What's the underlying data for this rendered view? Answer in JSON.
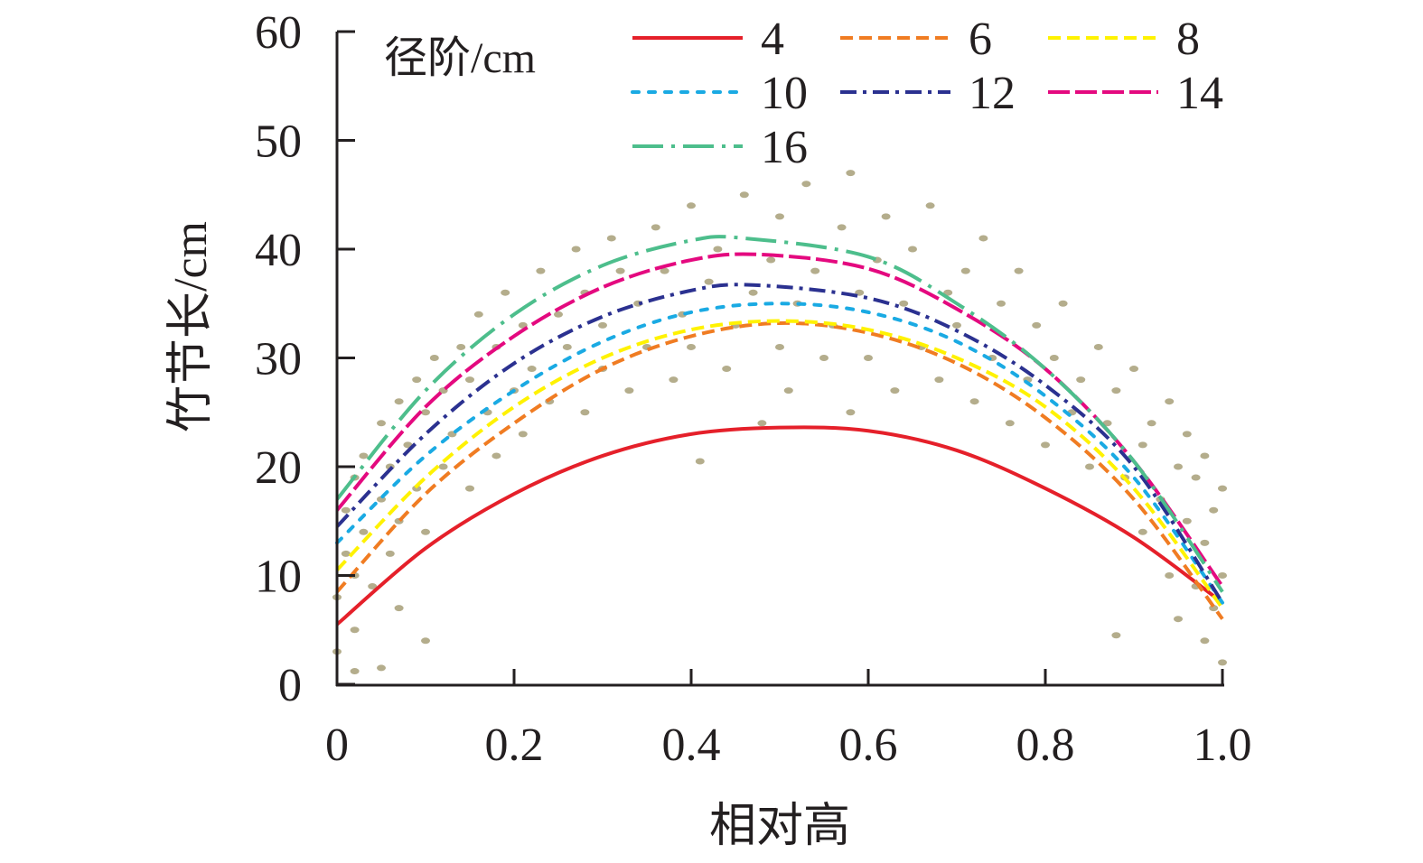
{
  "chart_data": {
    "type": "line",
    "xlabel": "相对高",
    "ylabel": "竹节长/cm",
    "xlim": [
      0,
      1.0
    ],
    "ylim": [
      0,
      60
    ],
    "xticks": [
      "0",
      "0.2",
      "0.4",
      "0.6",
      "0.8",
      "1.0"
    ],
    "xtick_values": [
      0,
      0.2,
      0.4,
      0.6,
      0.8,
      1.0
    ],
    "yticks": [
      "0",
      "10",
      "20",
      "30",
      "40",
      "50",
      "60"
    ],
    "ytick_values": [
      0,
      10,
      20,
      30,
      40,
      50,
      60
    ],
    "grid": false,
    "legend": {
      "title": "径阶/cm",
      "placement": "top"
    },
    "series": [
      {
        "name": "4",
        "color": "#e5202a",
        "style": "solid",
        "x": [
          0,
          0.1,
          0.2,
          0.3,
          0.4,
          0.5,
          0.6,
          0.7,
          0.8,
          0.9,
          1.0
        ],
        "y": [
          5.5,
          12.5,
          17.5,
          21,
          23,
          23.6,
          23.3,
          21.5,
          18,
          13.5,
          7.5
        ]
      },
      {
        "name": "6",
        "color": "#f07c22",
        "style": "dashed",
        "x": [
          0,
          0.1,
          0.2,
          0.3,
          0.4,
          0.5,
          0.6,
          0.7,
          0.8,
          0.9,
          1.0
        ],
        "y": [
          8.5,
          17.5,
          24,
          29,
          32,
          33.2,
          32.3,
          29.5,
          24.5,
          17,
          6
        ]
      },
      {
        "name": "8",
        "color": "#fff200",
        "style": "dashed",
        "x": [
          0,
          0.1,
          0.2,
          0.3,
          0.4,
          0.5,
          0.6,
          0.7,
          0.8,
          0.9,
          1.0
        ],
        "y": [
          10.5,
          19,
          25.5,
          30,
          32.6,
          33.4,
          32.6,
          30,
          25.5,
          18,
          7
        ]
      },
      {
        "name": "10",
        "color": "#1aaae3",
        "style": "dotted",
        "x": [
          0,
          0.1,
          0.2,
          0.3,
          0.4,
          0.5,
          0.6,
          0.7,
          0.8,
          0.9,
          1.0
        ],
        "y": [
          13,
          21,
          27,
          31.5,
          34.2,
          35,
          34.2,
          31.5,
          26.5,
          19,
          7.5
        ]
      },
      {
        "name": "12",
        "color": "#2b3190",
        "style": "dash-dot",
        "x": [
          0,
          0.1,
          0.2,
          0.3,
          0.4,
          0.47,
          0.6,
          0.7,
          0.8,
          0.9,
          1.0
        ],
        "y": [
          14.5,
          23,
          29.5,
          33.8,
          36.2,
          36.7,
          35.5,
          32.5,
          27.5,
          20,
          7.5
        ]
      },
      {
        "name": "14",
        "color": "#e4097f",
        "style": "long-dash",
        "x": [
          0,
          0.1,
          0.2,
          0.3,
          0.4,
          0.48,
          0.6,
          0.7,
          0.8,
          0.9,
          1.0
        ],
        "y": [
          16,
          25.5,
          32,
          36.5,
          39,
          39.5,
          38.2,
          34.5,
          29,
          20.5,
          9
        ]
      },
      {
        "name": "16",
        "color": "#4dbe8c",
        "style": "long-dash-dot",
        "x": [
          0,
          0.1,
          0.2,
          0.3,
          0.4,
          0.46,
          0.6,
          0.7,
          0.8,
          0.9,
          1.0
        ],
        "y": [
          17,
          27,
          34,
          38.5,
          40.8,
          41,
          39.3,
          35,
          29,
          20.5,
          8.5
        ]
      }
    ],
    "scatter": {
      "color": "#b4ad8c",
      "points": [
        [
          0.0,
          3
        ],
        [
          0.0,
          8
        ],
        [
          0.01,
          12
        ],
        [
          0.01,
          16
        ],
        [
          0.02,
          5
        ],
        [
          0.02,
          10
        ],
        [
          0.02,
          19
        ],
        [
          0.03,
          14
        ],
        [
          0.03,
          21
        ],
        [
          0.04,
          9
        ],
        [
          0.05,
          17
        ],
        [
          0.05,
          24
        ],
        [
          0.06,
          12
        ],
        [
          0.06,
          20
        ],
        [
          0.07,
          15
        ],
        [
          0.07,
          26
        ],
        [
          0.08,
          22
        ],
        [
          0.09,
          18
        ],
        [
          0.09,
          28
        ],
        [
          0.1,
          14
        ],
        [
          0.1,
          25
        ],
        [
          0.11,
          30
        ],
        [
          0.12,
          20
        ],
        [
          0.12,
          27
        ],
        [
          0.13,
          23
        ],
        [
          0.14,
          31
        ],
        [
          0.15,
          18
        ],
        [
          0.15,
          28
        ],
        [
          0.16,
          34
        ],
        [
          0.17,
          25
        ],
        [
          0.18,
          21
        ],
        [
          0.18,
          31
        ],
        [
          0.19,
          36
        ],
        [
          0.2,
          27
        ],
        [
          0.21,
          23
        ],
        [
          0.21,
          33
        ],
        [
          0.22,
          29
        ],
        [
          0.23,
          38
        ],
        [
          0.24,
          26
        ],
        [
          0.25,
          34
        ],
        [
          0.26,
          31
        ],
        [
          0.27,
          40
        ],
        [
          0.28,
          25
        ],
        [
          0.28,
          36
        ],
        [
          0.3,
          33
        ],
        [
          0.3,
          29
        ],
        [
          0.31,
          41
        ],
        [
          0.32,
          38
        ],
        [
          0.33,
          27
        ],
        [
          0.34,
          35
        ],
        [
          0.35,
          31
        ],
        [
          0.36,
          42
        ],
        [
          0.37,
          38
        ],
        [
          0.38,
          28
        ],
        [
          0.39,
          34
        ],
        [
          0.4,
          44
        ],
        [
          0.4,
          31
        ],
        [
          0.41,
          20.5
        ],
        [
          0.42,
          37
        ],
        [
          0.43,
          40
        ],
        [
          0.44,
          29
        ],
        [
          0.45,
          33
        ],
        [
          0.46,
          45
        ],
        [
          0.47,
          36
        ],
        [
          0.48,
          24
        ],
        [
          0.49,
          39
        ],
        [
          0.5,
          31
        ],
        [
          0.5,
          43
        ],
        [
          0.51,
          27
        ],
        [
          0.52,
          35
        ],
        [
          0.53,
          46
        ],
        [
          0.54,
          38
        ],
        [
          0.55,
          30
        ],
        [
          0.56,
          33
        ],
        [
          0.57,
          42
        ],
        [
          0.58,
          47
        ],
        [
          0.58,
          25
        ],
        [
          0.59,
          36
        ],
        [
          0.6,
          30
        ],
        [
          0.61,
          39
        ],
        [
          0.62,
          43
        ],
        [
          0.63,
          27
        ],
        [
          0.64,
          35
        ],
        [
          0.65,
          40
        ],
        [
          0.66,
          31
        ],
        [
          0.67,
          44
        ],
        [
          0.68,
          28
        ],
        [
          0.69,
          36
        ],
        [
          0.7,
          33
        ],
        [
          0.71,
          38
        ],
        [
          0.72,
          26
        ],
        [
          0.73,
          41
        ],
        [
          0.74,
          30
        ],
        [
          0.75,
          35
        ],
        [
          0.76,
          24
        ],
        [
          0.77,
          38
        ],
        [
          0.78,
          28
        ],
        [
          0.79,
          33
        ],
        [
          0.8,
          22
        ],
        [
          0.81,
          30
        ],
        [
          0.82,
          35
        ],
        [
          0.83,
          25
        ],
        [
          0.84,
          28
        ],
        [
          0.85,
          20
        ],
        [
          0.86,
          31
        ],
        [
          0.87,
          24
        ],
        [
          0.88,
          27
        ],
        [
          0.88,
          4.5
        ],
        [
          0.89,
          19
        ],
        [
          0.9,
          29
        ],
        [
          0.91,
          22
        ],
        [
          0.91,
          14
        ],
        [
          0.92,
          24
        ],
        [
          0.93,
          17
        ],
        [
          0.94,
          26
        ],
        [
          0.94,
          10
        ],
        [
          0.95,
          20
        ],
        [
          0.95,
          6
        ],
        [
          0.96,
          15
        ],
        [
          0.96,
          23
        ],
        [
          0.97,
          9
        ],
        [
          0.97,
          19
        ],
        [
          0.98,
          4
        ],
        [
          0.98,
          13
        ],
        [
          0.98,
          21
        ],
        [
          0.99,
          7
        ],
        [
          0.99,
          16
        ],
        [
          1.0,
          2
        ],
        [
          1.0,
          10
        ],
        [
          1.0,
          18
        ],
        [
          0.02,
          1.2
        ],
        [
          0.07,
          7
        ],
        [
          0.1,
          4
        ],
        [
          0.05,
          1.5
        ]
      ]
    }
  }
}
